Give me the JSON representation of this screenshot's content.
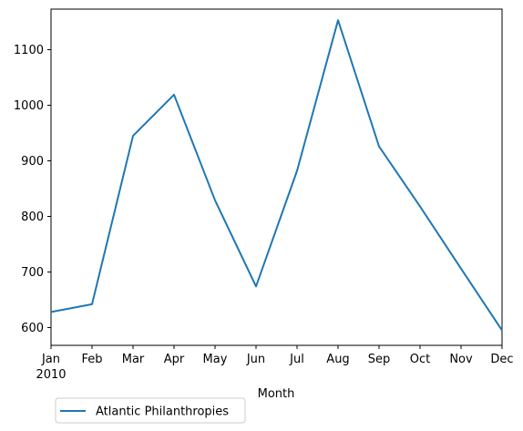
{
  "chart_data": {
    "type": "line",
    "title": "",
    "xlabel": "Month",
    "ylabel": "",
    "x": [
      "Jan",
      "Feb",
      "Mar",
      "Apr",
      "May",
      "Jun",
      "Jul",
      "Aug",
      "Sep",
      "Oct",
      "Nov",
      "Dec"
    ],
    "x_year_label": "2010",
    "xlim": [
      0,
      11
    ],
    "ylim": [
      568,
      1173
    ],
    "yticks": [
      600,
      700,
      800,
      900,
      1000,
      1100
    ],
    "grid": false,
    "legend": {
      "placement": "bottom-left",
      "entries": [
        "Atlantic Philanthropies"
      ]
    },
    "series": [
      {
        "name": "Atlantic Philanthropies",
        "color": "#1f77b4",
        "values": [
          628,
          642,
          945,
          1019,
          829,
          674,
          882,
          1153,
          926,
          818,
          706,
          595
        ]
      }
    ]
  }
}
